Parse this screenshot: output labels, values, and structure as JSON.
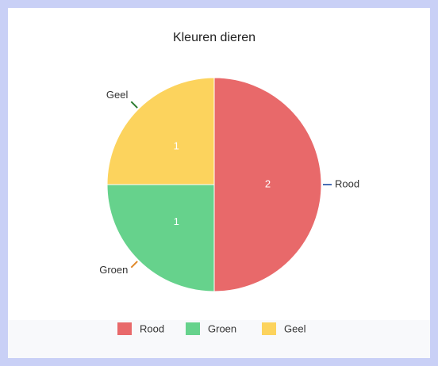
{
  "chart_data": {
    "type": "pie",
    "title": "Kleuren dieren",
    "categories": [
      "Rood",
      "Groen",
      "Geel"
    ],
    "values": [
      2,
      1,
      1
    ],
    "colors": [
      "#e8696a",
      "#66d28c",
      "#fcd35d"
    ],
    "label_line_colors": [
      "#4a6fb5",
      "#e08a2c",
      "#2e7d32"
    ],
    "legend": "bottom"
  }
}
